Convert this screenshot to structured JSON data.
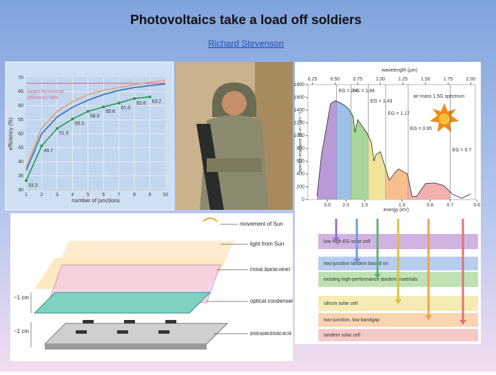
{
  "header": {
    "title": "Photovoltaics take a load off soldiers",
    "author": "Richard Stevenson"
  },
  "chart_data": [
    {
      "type": "line",
      "xlabel": "number of junctions",
      "ylabel": "efficiency (%)",
      "x": [
        1,
        2,
        3,
        4,
        5,
        6,
        7,
        8,
        9,
        10
      ],
      "series": [
        {
          "color": "#e8a070",
          "values": [
            38,
            52,
            58,
            61.5,
            64,
            65.5,
            66.5,
            67.5,
            68.5,
            69
          ]
        },
        {
          "color": "#2f6db5",
          "values": [
            37,
            50,
            56,
            59.5,
            62,
            64,
            65.5,
            66.5,
            67.2,
            67.8
          ]
        },
        {
          "color": "#1f9a4a",
          "values": [
            33.3,
            45.7,
            51.9,
            55.3,
            58.0,
            59.6,
            61.0,
            62.6,
            63.2,
            null
          ],
          "value_labels": [
            "33.3",
            "45.7",
            "51.9",
            "55.3",
            "58.0",
            "59.6",
            "61.0",
            "62.6",
            "63.2",
            null
          ]
        }
      ],
      "target": {
        "value": 68,
        "label": "target theoretical efficiency 68%",
        "color": "#e06c9a"
      },
      "xlim": [
        1,
        10
      ],
      "ylim": [
        30,
        70
      ],
      "xticks": [
        1,
        2,
        3,
        4,
        5,
        6,
        7,
        8,
        9,
        10
      ],
      "yticks": [
        30,
        35,
        40,
        45,
        50,
        55,
        60,
        65,
        70
      ],
      "grid": true
    },
    {
      "type": "area",
      "xlabel": "wavelength (μm)",
      "x2label": "energy (eV)",
      "ylabel": "spectral irradiance (W m⁻² μm⁻¹)",
      "annotation": "air mass 1.5G spectrum",
      "x": [
        0.3,
        0.35,
        0.4,
        0.45,
        0.5,
        0.55,
        0.6,
        0.65,
        0.7,
        0.72,
        0.75,
        0.8,
        0.85,
        0.9,
        0.93,
        0.95,
        1.0,
        1.1,
        1.15,
        1.2,
        1.3,
        1.35,
        1.4,
        1.5,
        1.6,
        1.7,
        1.8,
        1.9,
        2.0
      ],
      "values": [
        50,
        700,
        1100,
        1500,
        1550,
        1520,
        1480,
        1420,
        1300,
        1050,
        1250,
        1150,
        1050,
        900,
        600,
        700,
        750,
        300,
        400,
        480,
        400,
        50,
        50,
        250,
        260,
        220,
        80,
        20,
        90
      ],
      "xlim": [
        0.2,
        2.05
      ],
      "ylim": [
        0,
        1800
      ],
      "xticks": [
        0.25,
        {
          "value": 0.5,
          "label": "0.50"
        },
        0.75,
        {
          "value": 1,
          "label": "1.00"
        },
        1.25,
        {
          "value": 1.5,
          "label": "1.50"
        },
        1.75,
        {
          "value": 2,
          "label": "2.00"
        }
      ],
      "x2ticks": [
        {
          "value": 3,
          "label": "3.0"
        },
        {
          "value": 2,
          "label": "2.0"
        },
        1.5,
        {
          "value": 1,
          "label": "1.0"
        },
        0.8,
        0.7,
        0.6
      ],
      "yticks": [
        0,
        200,
        400,
        600,
        800,
        1000,
        1200,
        1400,
        1600,
        1800
      ],
      "bandgaps": [
        {
          "value": 2.4,
          "label": "EG = 2.4"
        },
        {
          "value": 1.84,
          "label": "EG = 1.84"
        },
        {
          "value": 1.43,
          "label": "EG = 1.43"
        },
        {
          "value": 1.17,
          "label": "EG = 1.17"
        },
        {
          "value": 0.95,
          "label": "EG = 0.95"
        },
        {
          "value": 0.7,
          "label": "EG = 0.7"
        }
      ],
      "colors": [
        "#b79ad6",
        "#9cc0e8",
        "#a8d59a",
        "#f0e49a",
        "#f6c08e",
        "#f2b0b0"
      ]
    }
  ],
  "band_chart": {
    "rows": [
      "low high EG solar cell",
      "two-junction tandem based on",
      "existing high-performance tandem materials",
      "silicon solar cell",
      "two-junction, low bandgap",
      "tandem solar cell"
    ]
  },
  "diagram": {
    "labels": [
      "movement of Sun",
      "light from Sun",
      "chromatic dispersion element",
      "optical condenser",
      "spectrally separated photovoltaic solar cells"
    ],
    "scale": [
      "~1 cm",
      "~1 cm"
    ]
  }
}
